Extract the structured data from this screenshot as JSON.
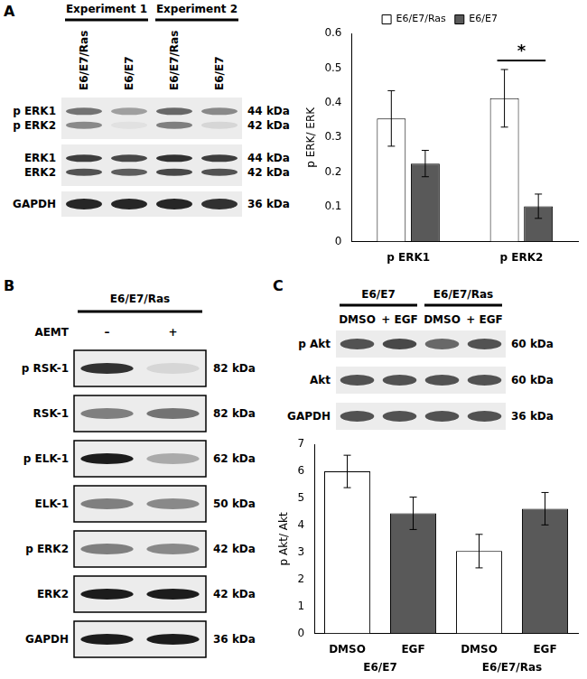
{
  "blots": [
    {
      "panel": "A",
      "groups": [
        {
          "label": "Experiment 1",
          "lanes": [
            "E6/E7/Ras",
            "E6/E7"
          ]
        },
        {
          "label": "Experiment 2",
          "lanes": [
            "E6/E7/Ras",
            "E6/E7"
          ]
        }
      ],
      "rows": [
        {
          "tracks": [
            {
              "label": "p ERK1",
              "size": "44 kDa",
              "intensity": [
                0.55,
                0.35,
                0.6,
                0.45
              ]
            },
            {
              "label": "p ERK2",
              "size": "42 kDa",
              "intensity": [
                0.45,
                0.05,
                0.5,
                0.1
              ]
            }
          ]
        },
        {
          "tracks": [
            {
              "label": "ERK1",
              "size": "44 kDa",
              "intensity": [
                0.8,
                0.75,
                0.85,
                0.8
              ]
            },
            {
              "label": "ERK2",
              "size": "42 kDa",
              "intensity": [
                0.7,
                0.65,
                0.75,
                0.7
              ]
            }
          ]
        },
        {
          "tracks": [
            {
              "label": "GAPDH",
              "size": "36 kDa",
              "intensity": [
                0.9,
                0.9,
                0.9,
                0.85
              ]
            }
          ]
        }
      ]
    },
    {
      "panel": "B",
      "lane_title": "AEMT",
      "groups": [
        {
          "label": "E6/E7/Ras",
          "lanes": [
            "–",
            "+"
          ]
        }
      ],
      "rows": [
        {
          "tracks": [
            {
              "label": "p RSK-1",
              "size": "82 kDa",
              "intensity": [
                0.85,
                0.1
              ]
            }
          ]
        },
        {
          "tracks": [
            {
              "label": "RSK-1",
              "size": "82 kDa",
              "intensity": [
                0.5,
                0.55
              ]
            }
          ]
        },
        {
          "tracks": [
            {
              "label": "p ELK-1",
              "size": "62 kDa",
              "intensity": [
                0.95,
                0.3
              ]
            }
          ]
        },
        {
          "tracks": [
            {
              "label": "ELK-1",
              "size": "50 kDa",
              "intensity": [
                0.5,
                0.45
              ]
            }
          ]
        },
        {
          "tracks": [
            {
              "label": "p ERK2",
              "size": "42 kDa",
              "intensity": [
                0.5,
                0.45
              ]
            }
          ]
        },
        {
          "tracks": [
            {
              "label": "ERK2",
              "size": "42 kDa",
              "intensity": [
                0.95,
                0.95
              ]
            }
          ]
        },
        {
          "tracks": [
            {
              "label": "GAPDH",
              "size": "36 kDa",
              "intensity": [
                0.95,
                0.95
              ]
            }
          ]
        }
      ]
    },
    {
      "panel": "C",
      "groups": [
        {
          "label": "E6/E7",
          "lanes": [
            "DMSO",
            "+ EGF"
          ]
        },
        {
          "label": "E6/E7/Ras",
          "lanes": [
            "DMSO",
            "+ EGF"
          ]
        }
      ],
      "rows": [
        {
          "tracks": [
            {
              "label": "p Akt",
              "size": "60 kDa",
              "intensity": [
                0.7,
                0.75,
                0.6,
                0.7
              ]
            }
          ]
        },
        {
          "tracks": [
            {
              "label": "Akt",
              "size": "60 kDa",
              "intensity": [
                0.7,
                0.7,
                0.7,
                0.7
              ]
            }
          ]
        },
        {
          "tracks": [
            {
              "label": "GAPDH",
              "size": "36 kDa",
              "intensity": [
                0.7,
                0.7,
                0.7,
                0.7
              ]
            }
          ]
        }
      ]
    }
  ],
  "chart_data": [
    {
      "type": "bar",
      "y_label": "p ERK/ ERK",
      "categories": [
        "p ERK1",
        "p ERK2"
      ],
      "series": [
        {
          "name": "E6/E7/Ras",
          "color": "#ffffff",
          "values": [
            0.355,
            0.413
          ],
          "errors": [
            0.08,
            0.083
          ]
        },
        {
          "name": "E6/E7",
          "color": "#595959",
          "values": [
            0.225,
            0.102
          ],
          "errors": [
            0.038,
            0.035
          ]
        }
      ],
      "ylim": [
        0,
        0.6
      ],
      "yticks": [
        0,
        0.1,
        0.2,
        0.3,
        0.4,
        0.5,
        0.6
      ],
      "grid": false,
      "legend": "top",
      "annotations": [
        {
          "text": "*",
          "category": "p ERK2"
        }
      ]
    },
    {
      "type": "bar",
      "y_label": "p Akt/ Akt",
      "categories": [
        "DMSO",
        "EGF",
        "DMSO",
        "EGF"
      ],
      "groups": [
        "E6/E7",
        "E6/E7/Ras"
      ],
      "values": [
        6.0,
        4.45,
        3.05,
        4.62
      ],
      "errors": [
        0.6,
        0.6,
        0.62,
        0.6
      ],
      "colors": [
        "#ffffff",
        "#595959",
        "#ffffff",
        "#595959"
      ],
      "ylim": [
        0,
        7
      ],
      "yticks": [
        0,
        1,
        2,
        3,
        4,
        5,
        6,
        7
      ],
      "grid": false
    }
  ]
}
